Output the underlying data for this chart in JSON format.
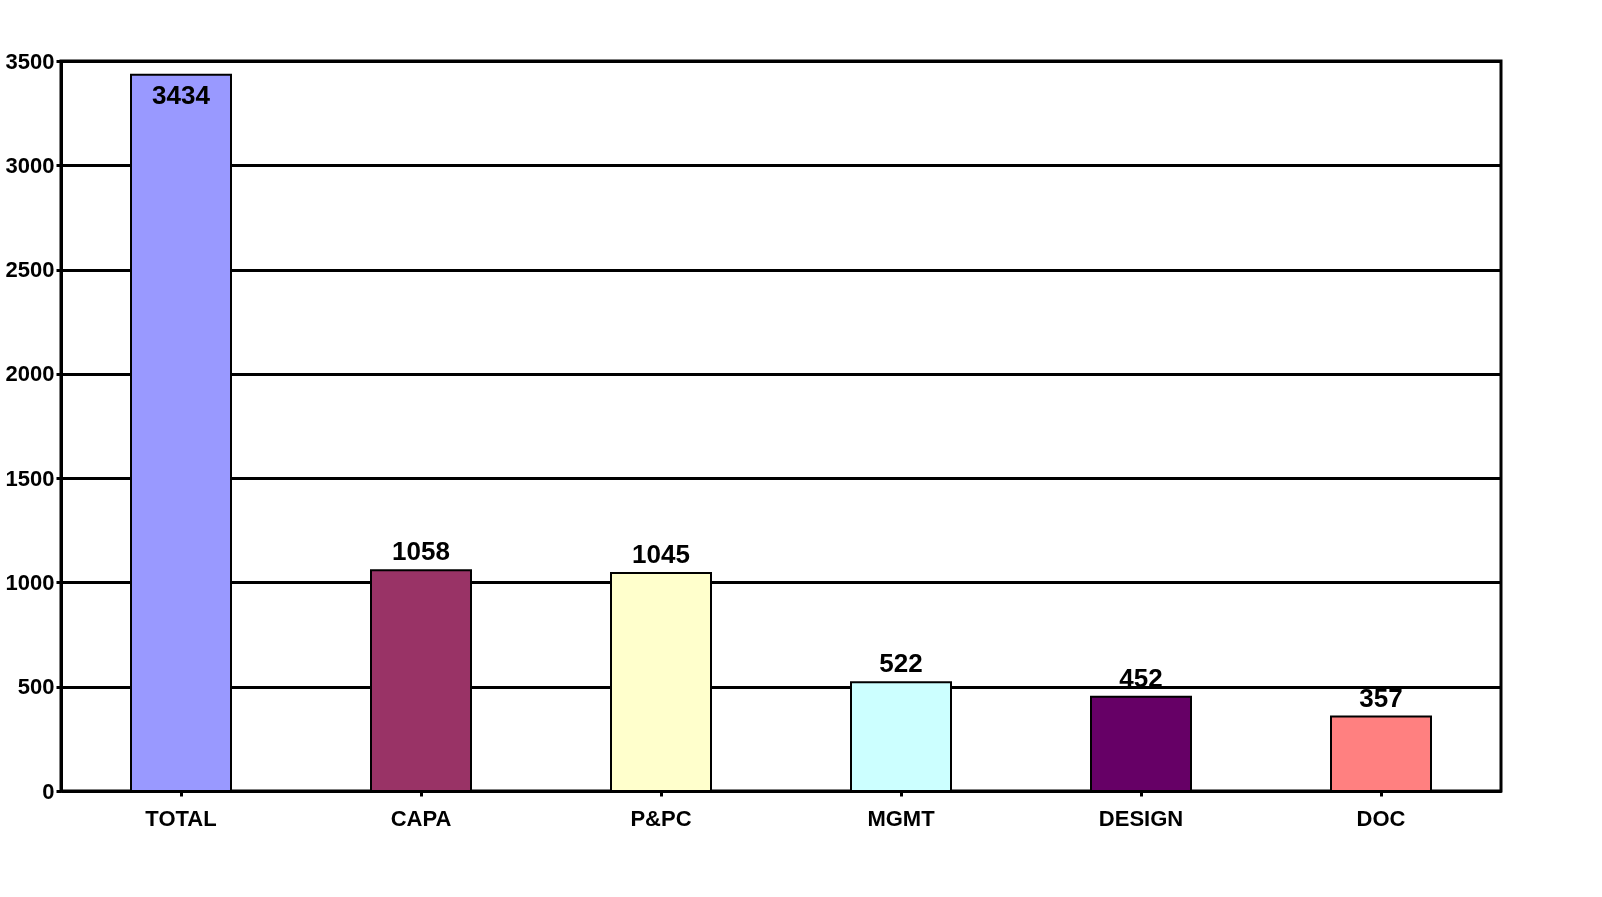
{
  "chart_data": {
    "type": "bar",
    "categories": [
      "TOTAL",
      "CAPA",
      "P&PC",
      "MGMT",
      "DESIGN",
      "DOC"
    ],
    "values": [
      3434,
      1058,
      1045,
      522,
      452,
      357
    ],
    "colors": [
      "#9999ff",
      "#993366",
      "#ffffcc",
      "#ccffff",
      "#660066",
      "#ff8080"
    ],
    "ylim": [
      0,
      3500
    ],
    "yticks": [
      0,
      500,
      1000,
      1500,
      2000,
      2500,
      3000,
      3500
    ],
    "grid": "y",
    "data_labels": true,
    "legend": false
  }
}
